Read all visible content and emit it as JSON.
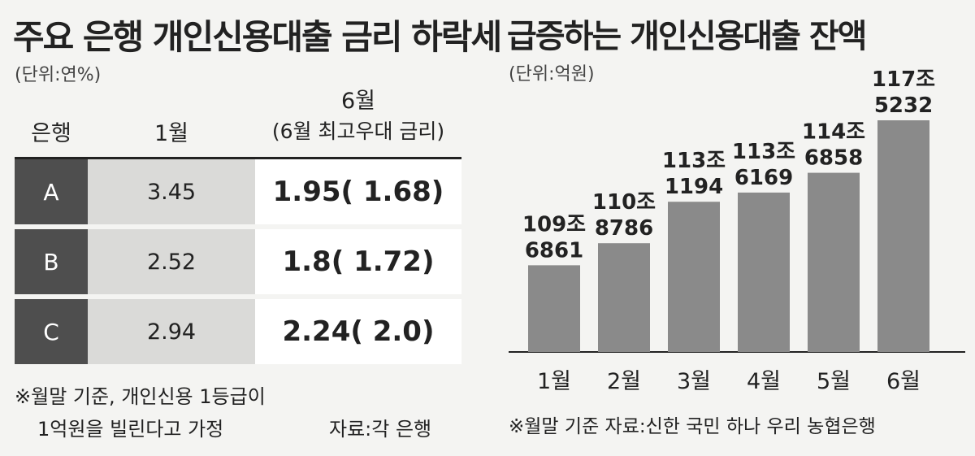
{
  "left": {
    "title": "주요 은행 개인신용대출 금리 하락세",
    "unit": "(단위:연%)",
    "headers": {
      "bank": "은행",
      "jan": "1월",
      "jun": "6월",
      "jun_sub": "(6월 최고우대 금리)"
    },
    "rows": [
      {
        "bank": "A",
        "jan": "3.45",
        "jun": "1.95( 1.68)"
      },
      {
        "bank": "B",
        "jan": "2.52",
        "jun": "1.8( 1.72)"
      },
      {
        "bank": "C",
        "jan": "2.94",
        "jun": "2.24( 2.0)"
      }
    ],
    "note_line1": "※월말 기준, 개인신용 1등급이",
    "note_line2": "1억원을 빌린다고 가정",
    "source": "자료:각 은행"
  },
  "chart_data": {
    "type": "bar",
    "title": "급증하는 개인신용대출 잔액",
    "unit": "(단위:억원)",
    "categories": [
      "1월",
      "2월",
      "3월",
      "4월",
      "5월",
      "6월"
    ],
    "values": [
      1096861,
      1108786,
      1131194,
      1136169,
      1146858,
      1175232
    ],
    "labels": [
      [
        "109조",
        "6861"
      ],
      [
        "110조",
        "8786"
      ],
      [
        "113조",
        "1194"
      ],
      [
        "113조",
        "6169"
      ],
      [
        "114조",
        "6858"
      ],
      [
        "117조",
        "5232"
      ]
    ],
    "bar_color": "#8a8a8a",
    "footnote": "※월말 기준  자료:신한 국민 하나 우리 농협은행"
  }
}
